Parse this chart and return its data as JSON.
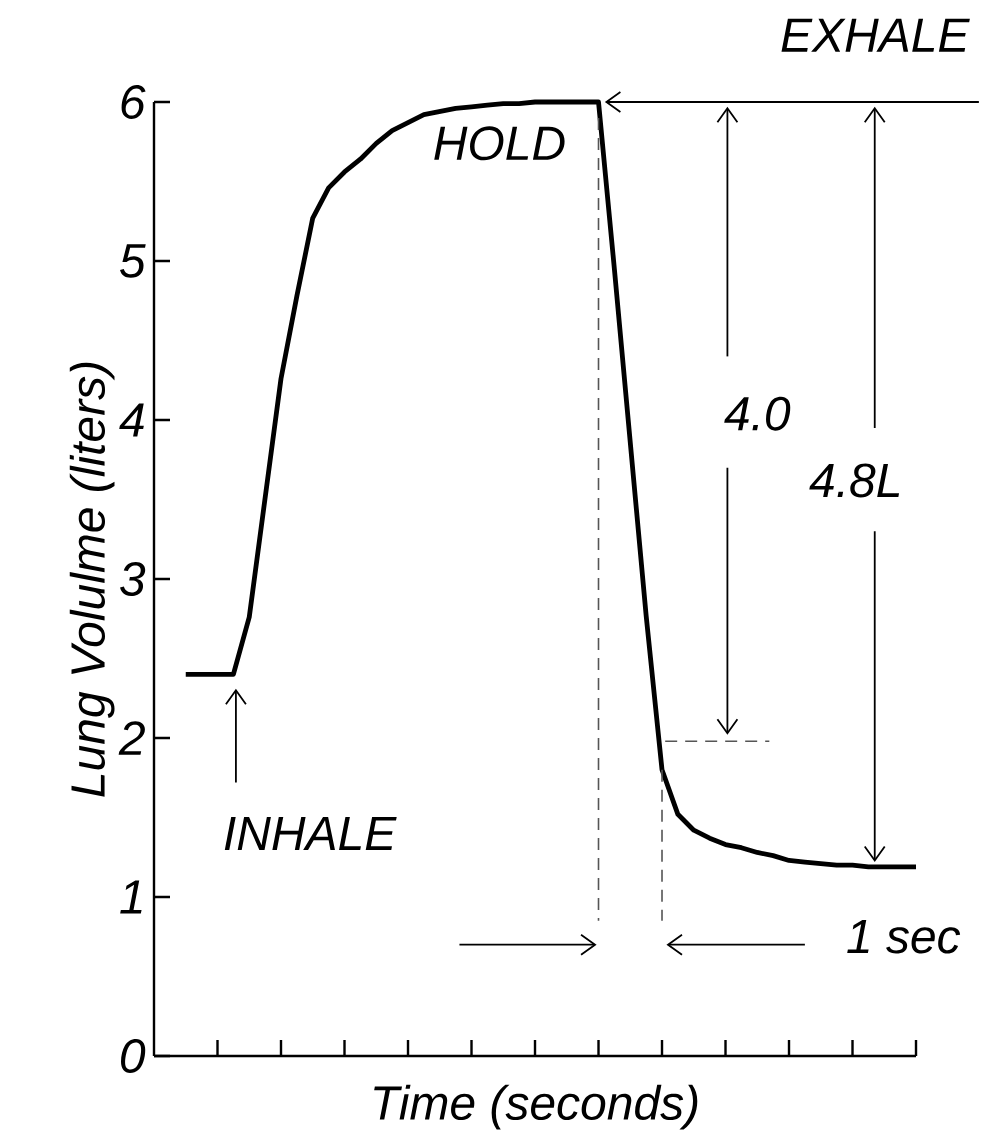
{
  "chart_data": {
    "type": "line",
    "xlabel": "Time (seconds)",
    "ylabel": "Lung Volulme (liters)",
    "categories": [
      null,
      null,
      null,
      null,
      null,
      null,
      null,
      null,
      null,
      null,
      null,
      null,
      null,
      null,
      null,
      null,
      null,
      null,
      null,
      null,
      null,
      null,
      null,
      null,
      null,
      null,
      null,
      null,
      null,
      null,
      null,
      null,
      null,
      null,
      null,
      null,
      null,
      null,
      null,
      null,
      null,
      null,
      null,
      null,
      null,
      null,
      null
    ],
    "series": [
      {
        "color": "#000000",
        "values": [
          2.4,
          2.4,
          2.4,
          2.4,
          2.76,
          3.51,
          4.26,
          4.78,
          5.27,
          5.46,
          5.56,
          5.64,
          5.74,
          5.82,
          5.87,
          5.92,
          5.94,
          5.96,
          5.97,
          5.98,
          5.99,
          5.99,
          6.0,
          6.0,
          6.0,
          6.0,
          6.0,
          4.95,
          3.86,
          2.77,
          1.8,
          1.52,
          1.42,
          1.37,
          1.33,
          1.31,
          1.28,
          1.26,
          1.23,
          1.22,
          1.21,
          1.2,
          1.2,
          1.19,
          1.19,
          1.19,
          1.19
        ]
      }
    ],
    "ylim": [
      0,
      6
    ],
    "yticks": [
      0,
      1,
      2,
      3,
      4,
      5,
      6
    ],
    "annotations": [
      "EXHALE",
      "HOLD",
      "INHALE",
      "4.0",
      "4.8L",
      "1 sec"
    ],
    "grid": false,
    "marker": "none",
    "line_style": "solid"
  }
}
